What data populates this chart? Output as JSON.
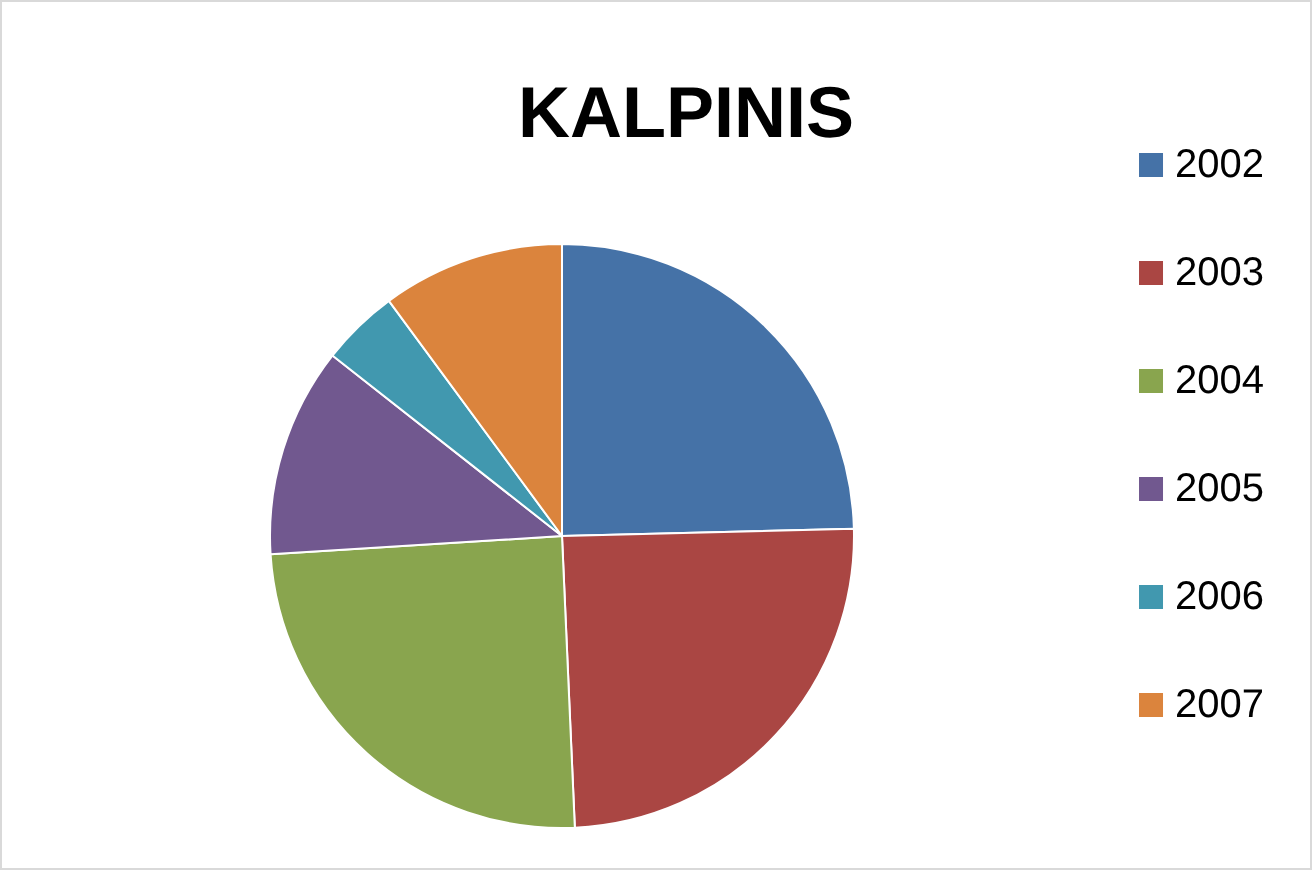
{
  "chart_data": {
    "type": "pie",
    "title": "KALPINIS",
    "categories": [
      "2002",
      "2003",
      "2004",
      "2005",
      "2006",
      "2007"
    ],
    "values": [
      24.6,
      24.7,
      24.7,
      11.6,
      4.3,
      10.1
    ],
    "colors": [
      "#4572a7",
      "#aa4643",
      "#89a54e",
      "#71588f",
      "#4198af",
      "#db843d"
    ],
    "legend": "right"
  }
}
